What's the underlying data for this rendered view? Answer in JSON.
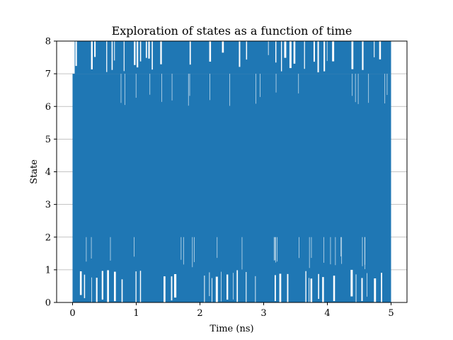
{
  "chart_data": {
    "type": "line",
    "title": "Exploration of states as a function of time",
    "xlabel": "Time (ns)",
    "ylabel": "State",
    "xlim": [
      -0.25,
      5.25
    ],
    "ylim": [
      0,
      8
    ],
    "x_ticks": [
      0,
      1,
      2,
      3,
      4,
      5
    ],
    "y_ticks": [
      0,
      1,
      2,
      3,
      4,
      5,
      6,
      7,
      8
    ],
    "grid": "y-only",
    "legend": "none",
    "series": [
      {
        "color": "#1f77b4",
        "x_range": [
          0,
          5
        ],
        "state_range": [
          0,
          8
        ],
        "description_values": "dense rapid hopping between states 0 and 8 over time 0-5 ns"
      }
    ]
  }
}
